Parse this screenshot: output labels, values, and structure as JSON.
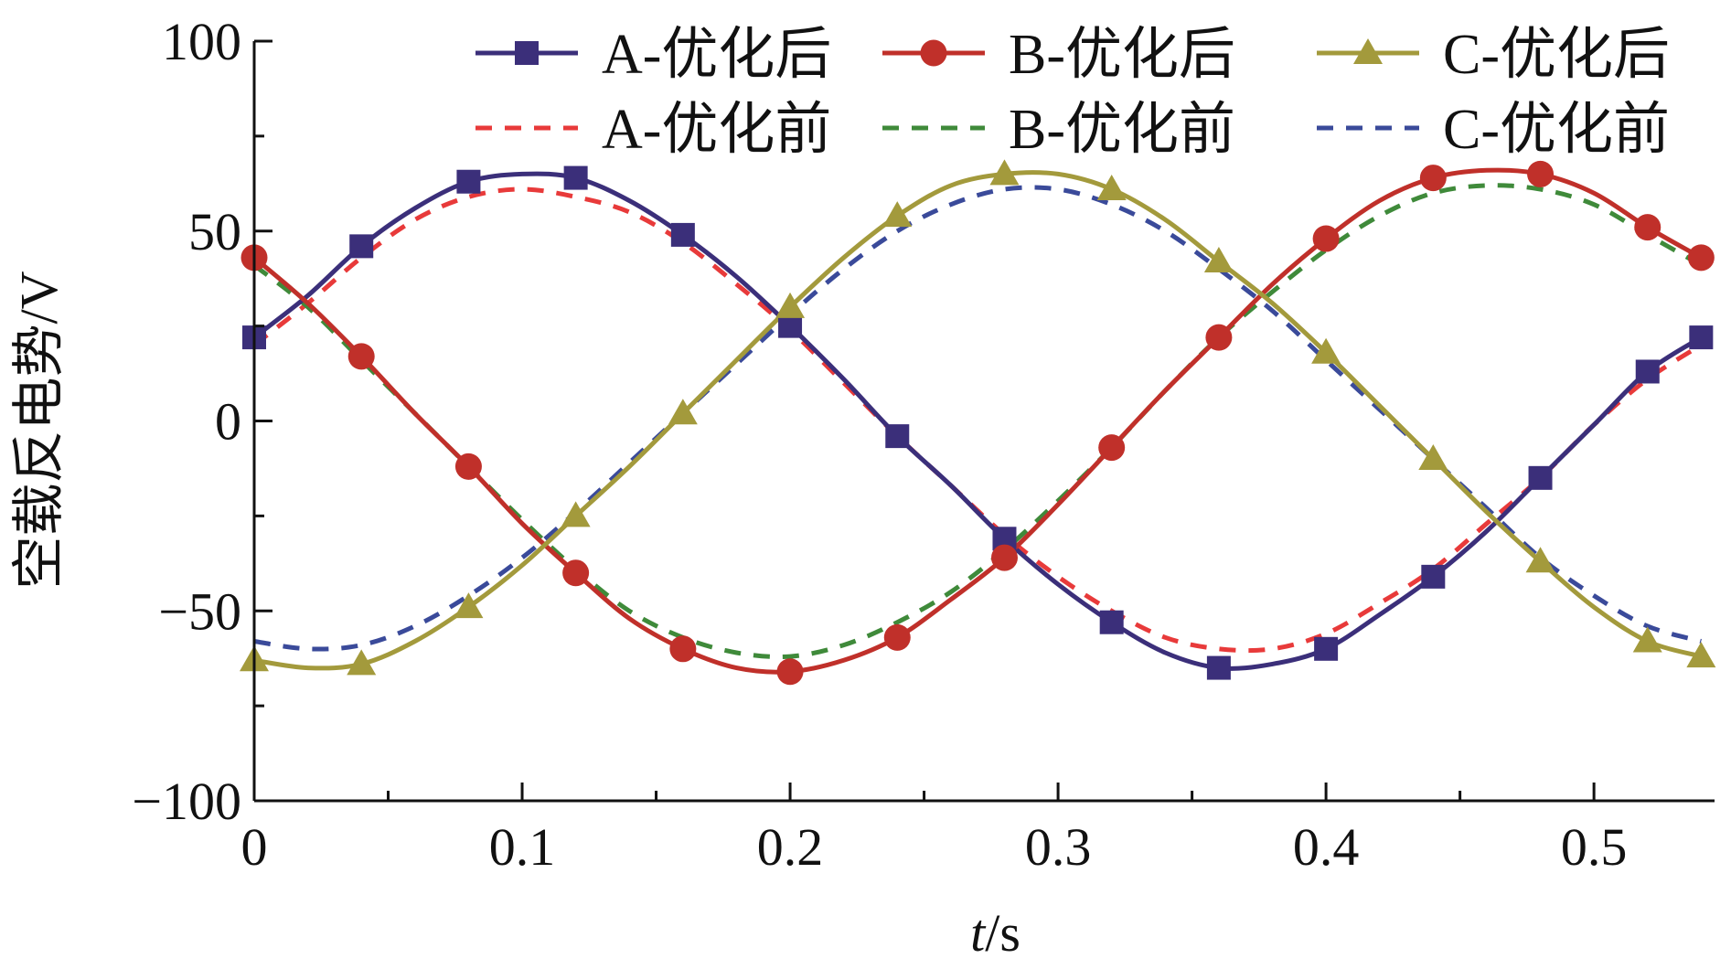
{
  "chart_data": {
    "type": "line",
    "xlabel_italic": "t",
    "xlabel_unit": "/s",
    "ylabel": "空载反电势/V",
    "xlim": [
      0,
      0.545
    ],
    "ylim": [
      -100,
      100
    ],
    "xticks": [
      0,
      0.1,
      0.2,
      0.3,
      0.4,
      0.5
    ],
    "xtick_labels": [
      "0",
      "0.1",
      "0.2",
      "0.3",
      "0.4",
      "0.5"
    ],
    "xminor": [
      0.05,
      0.15,
      0.25,
      0.35,
      0.45
    ],
    "yticks": [
      -100,
      -50,
      0,
      50,
      100
    ],
    "ytick_labels": [
      "−100",
      "−50",
      "0",
      "50",
      "100"
    ],
    "yminor": [
      -75,
      -25,
      25,
      75
    ],
    "legend_position": "top",
    "series": [
      {
        "name": "A-优化后",
        "color": "#3b2f7a",
        "style": "solid",
        "marker": "square",
        "x": [
          0,
          0.02,
          0.04,
          0.06,
          0.08,
          0.1,
          0.12,
          0.14,
          0.16,
          0.18,
          0.2,
          0.22,
          0.24,
          0.26,
          0.28,
          0.3,
          0.32,
          0.34,
          0.36,
          0.38,
          0.4,
          0.42,
          0.44,
          0.46,
          0.48,
          0.5,
          0.52,
          0.54
        ],
        "y": [
          22,
          33,
          46,
          56,
          63,
          65,
          64,
          58,
          49,
          38,
          25,
          11,
          -4,
          -17,
          -31,
          -43,
          -53,
          -61,
          -65,
          -64,
          -60,
          -51,
          -41,
          -29,
          -15,
          -1,
          13,
          22
        ],
        "marker_x": [
          0,
          0.04,
          0.08,
          0.12,
          0.16,
          0.2,
          0.24,
          0.28,
          0.32,
          0.36,
          0.4,
          0.44,
          0.48,
          0.52,
          0.54
        ],
        "marker_y": [
          22,
          46,
          63,
          64,
          49,
          25,
          -4,
          -31,
          -53,
          -65,
          -60,
          -41,
          -15,
          13,
          22
        ]
      },
      {
        "name": "B-优化后",
        "color": "#c0302a",
        "style": "solid",
        "marker": "circle",
        "x": [
          0,
          0.02,
          0.04,
          0.06,
          0.08,
          0.1,
          0.12,
          0.14,
          0.16,
          0.18,
          0.2,
          0.22,
          0.24,
          0.26,
          0.28,
          0.3,
          0.32,
          0.34,
          0.36,
          0.38,
          0.4,
          0.42,
          0.44,
          0.46,
          0.48,
          0.5,
          0.52,
          0.54
        ],
        "y": [
          43,
          31,
          17,
          2,
          -12,
          -27,
          -40,
          -52,
          -60,
          -65,
          -66,
          -63,
          -57,
          -47,
          -36,
          -22,
          -7,
          8,
          22,
          36,
          48,
          58,
          64,
          66,
          65,
          60,
          51,
          43
        ],
        "marker_x": [
          0,
          0.04,
          0.08,
          0.12,
          0.16,
          0.2,
          0.24,
          0.28,
          0.32,
          0.36,
          0.4,
          0.44,
          0.48,
          0.52,
          0.54
        ],
        "marker_y": [
          43,
          17,
          -12,
          -40,
          -60,
          -66,
          -57,
          -36,
          -7,
          22,
          48,
          64,
          65,
          51,
          43
        ]
      },
      {
        "name": "C-优化后",
        "color": "#a39a3c",
        "style": "solid",
        "marker": "triangle",
        "x": [
          0,
          0.02,
          0.04,
          0.06,
          0.08,
          0.1,
          0.12,
          0.14,
          0.16,
          0.18,
          0.2,
          0.22,
          0.24,
          0.26,
          0.28,
          0.3,
          0.32,
          0.34,
          0.36,
          0.38,
          0.4,
          0.42,
          0.44,
          0.46,
          0.48,
          0.5,
          0.52,
          0.54
        ],
        "y": [
          -63,
          -65,
          -64,
          -58,
          -49,
          -38,
          -25,
          -12,
          2,
          16,
          30,
          43,
          54,
          62,
          65,
          65,
          61,
          53,
          42,
          31,
          18,
          4,
          -10,
          -24,
          -37,
          -49,
          -58,
          -62
        ],
        "marker_x": [
          0,
          0.04,
          0.08,
          0.12,
          0.16,
          0.2,
          0.24,
          0.28,
          0.32,
          0.36,
          0.4,
          0.44,
          0.48,
          0.52,
          0.54
        ],
        "marker_y": [
          -63,
          -64,
          -49,
          -25,
          2,
          30,
          54,
          65,
          61,
          42,
          18,
          -10,
          -37,
          -58,
          -62
        ]
      },
      {
        "name": "A-优化前",
        "color": "#e83a3a",
        "style": "dashed",
        "marker": "none",
        "x": [
          0,
          0.02,
          0.04,
          0.06,
          0.08,
          0.1,
          0.12,
          0.14,
          0.16,
          0.18,
          0.2,
          0.22,
          0.24,
          0.26,
          0.28,
          0.3,
          0.32,
          0.34,
          0.36,
          0.38,
          0.4,
          0.42,
          0.44,
          0.46,
          0.48,
          0.5,
          0.52,
          0.54
        ],
        "y": [
          20,
          31,
          43,
          53,
          59,
          61,
          59,
          55,
          47,
          36,
          24,
          10,
          -4,
          -17,
          -30,
          -41,
          -50,
          -57,
          -60,
          -60,
          -56,
          -48,
          -39,
          -27,
          -15,
          -1,
          11,
          20
        ]
      },
      {
        "name": "B-优化前",
        "color": "#3f8a3a",
        "style": "dashed",
        "marker": "none",
        "x": [
          0,
          0.02,
          0.04,
          0.06,
          0.08,
          0.1,
          0.12,
          0.14,
          0.16,
          0.18,
          0.2,
          0.22,
          0.24,
          0.26,
          0.28,
          0.3,
          0.32,
          0.34,
          0.36,
          0.38,
          0.4,
          0.42,
          0.44,
          0.46,
          0.48,
          0.5,
          0.52,
          0.54
        ],
        "y": [
          41,
          30,
          16,
          2,
          -12,
          -26,
          -39,
          -50,
          -57,
          -61,
          -62,
          -59,
          -53,
          -45,
          -34,
          -21,
          -7,
          8,
          22,
          34,
          45,
          54,
          60,
          62,
          61,
          57,
          49,
          41
        ]
      },
      {
        "name": "C-优化前",
        "color": "#3a4a9a",
        "style": "dashed",
        "marker": "none",
        "x": [
          0,
          0.02,
          0.04,
          0.06,
          0.08,
          0.1,
          0.12,
          0.14,
          0.16,
          0.18,
          0.2,
          0.22,
          0.24,
          0.26,
          0.28,
          0.3,
          0.32,
          0.34,
          0.36,
          0.38,
          0.4,
          0.42,
          0.44,
          0.46,
          0.48,
          0.5,
          0.52,
          0.54
        ],
        "y": [
          -58,
          -60,
          -59,
          -54,
          -46,
          -36,
          -24,
          -11,
          2,
          15,
          28,
          40,
          50,
          57,
          61,
          61,
          57,
          50,
          40,
          29,
          16,
          3,
          -10,
          -23,
          -36,
          -46,
          -54,
          -58
        ]
      }
    ]
  }
}
